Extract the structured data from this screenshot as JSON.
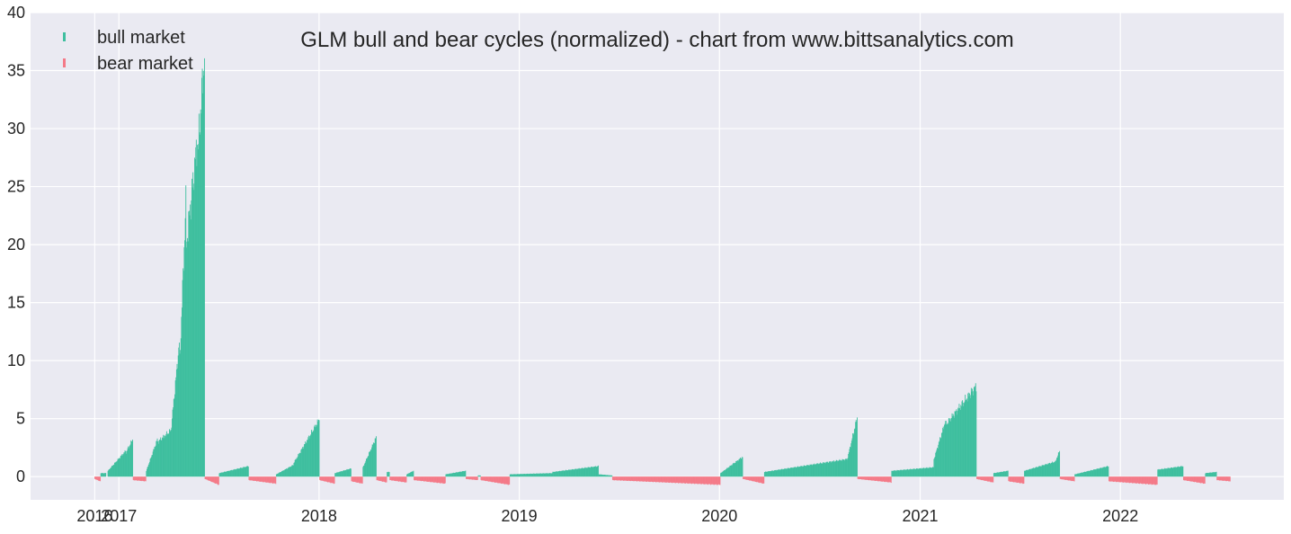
{
  "chart_data": {
    "type": "bar",
    "title": "GLM bull and bear cycles (normalized)  - chart from www.bittsanalytics.com",
    "xlabel": "",
    "ylabel": "",
    "ylim": [
      -2,
      40
    ],
    "xlim": [
      "2016-07-24",
      "2022-10-26"
    ],
    "grid": true,
    "legend_position": "top-left",
    "y_ticks": [
      0,
      5,
      10,
      15,
      20,
      25,
      30,
      35,
      40
    ],
    "x_ticks": [
      {
        "label": "2016",
        "date": "2016-11-18"
      },
      {
        "label": "2017",
        "date": "2017-01-01"
      },
      {
        "label": "2018",
        "date": "2018-01-01"
      },
      {
        "label": "2019",
        "date": "2019-01-01"
      },
      {
        "label": "2020",
        "date": "2020-01-01"
      },
      {
        "label": "2021",
        "date": "2021-01-01"
      },
      {
        "label": "2022",
        "date": "2022-01-01"
      }
    ],
    "colors": {
      "bull": "#3fbf9f",
      "bear": "#f47a88",
      "background": "#eaeaf2",
      "grid": "#ffffff",
      "text": "#262626"
    },
    "series": [
      {
        "name": "bull market",
        "key": "bull",
        "segments": [
          {
            "start": "2016-11-29",
            "end": "2016-12-08",
            "from": 0.3,
            "to": 0.3
          },
          {
            "start": "2016-12-12",
            "end": "2017-01-13",
            "from": 0.5,
            "to": 2.2
          },
          {
            "start": "2017-01-14",
            "end": "2017-01-26",
            "from": 2.1,
            "to": 3.2
          },
          {
            "start": "2017-02-20",
            "end": "2017-03-12",
            "from": 0.5,
            "to": 3.2
          },
          {
            "start": "2017-03-13",
            "end": "2017-04-06",
            "from": 3.0,
            "to": 4.0
          },
          {
            "start": "2017-04-07",
            "end": "2017-04-21",
            "from": 4.5,
            "to": 11.5
          },
          {
            "start": "2017-04-22",
            "end": "2017-05-03",
            "from": 10.0,
            "to": 23.5
          },
          {
            "start": "2017-05-04",
            "end": "2017-05-24",
            "from": 20.0,
            "to": 29.0
          },
          {
            "start": "2017-05-25",
            "end": "2017-06-06",
            "from": 28.0,
            "to": 36.5
          },
          {
            "start": "2017-07-03",
            "end": "2017-08-25",
            "from": 0.3,
            "to": 0.9
          },
          {
            "start": "2017-10-15",
            "end": "2017-11-15",
            "from": 0.2,
            "to": 1.0
          },
          {
            "start": "2017-11-16",
            "end": "2018-01-01",
            "from": 1.2,
            "to": 4.9
          },
          {
            "start": "2018-01-30",
            "end": "2018-02-28",
            "from": 0.3,
            "to": 0.7
          },
          {
            "start": "2018-03-22",
            "end": "2018-04-15",
            "from": 0.8,
            "to": 3.4
          },
          {
            "start": "2018-05-05",
            "end": "2018-05-09",
            "from": 0.4,
            "to": 0.4
          },
          {
            "start": "2018-06-10",
            "end": "2018-06-22",
            "from": 0.2,
            "to": 0.5
          },
          {
            "start": "2018-08-20",
            "end": "2018-09-25",
            "from": 0.2,
            "to": 0.5
          },
          {
            "start": "2018-10-18",
            "end": "2018-10-22",
            "from": 0.1,
            "to": 0.1
          },
          {
            "start": "2018-12-15",
            "end": "2019-03-02",
            "from": 0.2,
            "to": 0.3
          },
          {
            "start": "2019-03-03",
            "end": "2019-05-25",
            "from": 0.4,
            "to": 0.9
          },
          {
            "start": "2019-05-26",
            "end": "2019-06-19",
            "from": 0.2,
            "to": 0.1
          },
          {
            "start": "2020-01-03",
            "end": "2020-02-12",
            "from": 0.3,
            "to": 1.7
          },
          {
            "start": "2020-03-23",
            "end": "2020-08-20",
            "from": 0.4,
            "to": 1.5
          },
          {
            "start": "2020-08-21",
            "end": "2020-09-08",
            "from": 1.5,
            "to": 5.1
          },
          {
            "start": "2020-11-10",
            "end": "2021-01-25",
            "from": 0.5,
            "to": 0.8
          },
          {
            "start": "2021-01-26",
            "end": "2021-02-16",
            "from": 1.5,
            "to": 4.8
          },
          {
            "start": "2021-02-17",
            "end": "2021-04-13",
            "from": 4.5,
            "to": 7.8
          },
          {
            "start": "2021-05-15",
            "end": "2021-06-10",
            "from": 0.3,
            "to": 0.5
          },
          {
            "start": "2021-07-10",
            "end": "2021-09-05",
            "from": 0.5,
            "to": 1.3
          },
          {
            "start": "2021-09-06",
            "end": "2021-09-12",
            "from": 1.5,
            "to": 2.2
          },
          {
            "start": "2021-10-10",
            "end": "2021-12-10",
            "from": 0.2,
            "to": 0.9
          },
          {
            "start": "2022-03-10",
            "end": "2022-04-25",
            "from": 0.6,
            "to": 0.9
          },
          {
            "start": "2022-06-05",
            "end": "2022-06-25",
            "from": 0.3,
            "to": 0.4
          }
        ]
      },
      {
        "name": "bear market",
        "key": "bear",
        "segments": [
          {
            "start": "2016-11-18",
            "end": "2016-11-28",
            "from": -0.2,
            "to": -0.4
          },
          {
            "start": "2017-01-27",
            "end": "2017-02-19",
            "from": -0.3,
            "to": -0.4
          },
          {
            "start": "2017-06-07",
            "end": "2017-07-02",
            "from": -0.2,
            "to": -0.7
          },
          {
            "start": "2017-08-26",
            "end": "2017-10-14",
            "from": -0.3,
            "to": -0.6
          },
          {
            "start": "2018-01-02",
            "end": "2018-01-29",
            "from": -0.3,
            "to": -0.6
          },
          {
            "start": "2018-03-01",
            "end": "2018-03-21",
            "from": -0.4,
            "to": -0.6
          },
          {
            "start": "2018-04-16",
            "end": "2018-05-04",
            "from": -0.3,
            "to": -0.5
          },
          {
            "start": "2018-05-10",
            "end": "2018-06-09",
            "from": -0.3,
            "to": -0.5
          },
          {
            "start": "2018-06-23",
            "end": "2018-08-19",
            "from": -0.3,
            "to": -0.6
          },
          {
            "start": "2018-09-26",
            "end": "2018-10-17",
            "from": -0.2,
            "to": -0.3
          },
          {
            "start": "2018-10-23",
            "end": "2018-12-14",
            "from": -0.3,
            "to": -0.7
          },
          {
            "start": "2019-06-20",
            "end": "2020-01-02",
            "from": -0.3,
            "to": -0.7
          },
          {
            "start": "2020-02-13",
            "end": "2020-03-22",
            "from": -0.2,
            "to": -0.6
          },
          {
            "start": "2020-09-09",
            "end": "2020-11-09",
            "from": -0.2,
            "to": -0.5
          },
          {
            "start": "2021-04-14",
            "end": "2021-05-14",
            "from": -0.2,
            "to": -0.5
          },
          {
            "start": "2021-06-11",
            "end": "2021-07-09",
            "from": -0.4,
            "to": -0.6
          },
          {
            "start": "2021-09-13",
            "end": "2021-10-09",
            "from": -0.2,
            "to": -0.4
          },
          {
            "start": "2021-12-11",
            "end": "2022-03-09",
            "from": -0.4,
            "to": -0.7
          },
          {
            "start": "2022-04-26",
            "end": "2022-06-04",
            "from": -0.3,
            "to": -0.6
          },
          {
            "start": "2022-06-26",
            "end": "2022-07-20",
            "from": -0.3,
            "to": -0.4
          }
        ]
      }
    ]
  }
}
